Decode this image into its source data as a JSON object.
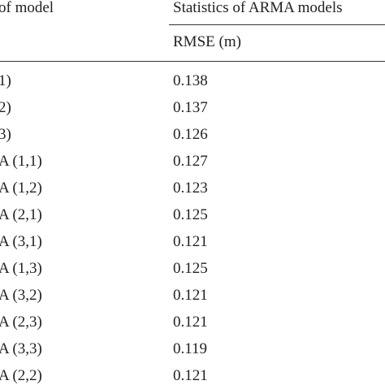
{
  "header": {
    "col1": "of model",
    "col2": "Statistics of ARMA models",
    "sub": "RMSE (m)"
  },
  "table": {
    "rows": [
      [
        "1)",
        "0.138"
      ],
      [
        "2)",
        "0.137"
      ],
      [
        "3)",
        "0.126"
      ],
      [
        "A (1,1)",
        "0.127"
      ],
      [
        "A (1,2)",
        "0.123"
      ],
      [
        "A (2,1)",
        "0.125"
      ],
      [
        "A (3,1)",
        "0.121"
      ],
      [
        "A (1,3)",
        "0.125"
      ],
      [
        "A (3,2)",
        "0.121"
      ],
      [
        "A (2,3)",
        "0.121"
      ],
      [
        "A (3,3)",
        "0.119"
      ],
      [
        "A (2,2)",
        "0.121"
      ]
    ]
  }
}
